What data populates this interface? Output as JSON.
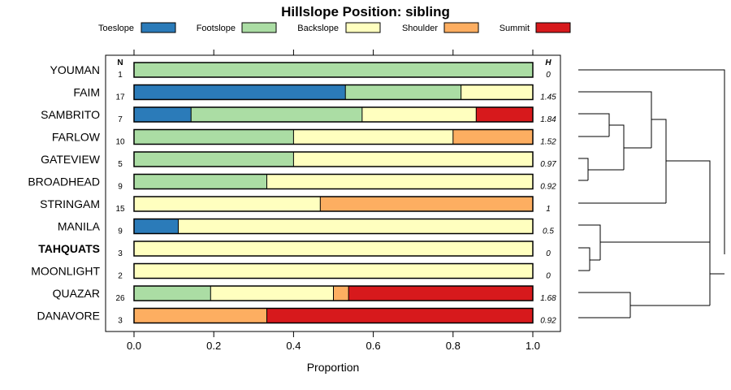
{
  "chart_data": {
    "type": "bar",
    "orientation": "horizontal-stacked",
    "title": "Hillslope Position: sibling",
    "xlabel": "Proportion",
    "xlim": [
      0,
      1
    ],
    "xticks": [
      "0.0",
      "0.2",
      "0.4",
      "0.6",
      "0.8",
      "1.0"
    ],
    "xtick_values": [
      0,
      0.2,
      0.4,
      0.6,
      0.8,
      1.0
    ],
    "n_header": "N",
    "h_header": "H",
    "legend": [
      {
        "name": "Toeslope",
        "color": "#2b7bb9"
      },
      {
        "name": "Footslope",
        "color": "#abdda4"
      },
      {
        "name": "Backslope",
        "color": "#ffffbf"
      },
      {
        "name": "Shoulder",
        "color": "#fdae61"
      },
      {
        "name": "Summit",
        "color": "#d7191c"
      }
    ],
    "rows": [
      {
        "label": "YOUMAN",
        "bold": false,
        "n": "1",
        "h": "0",
        "values": [
          0,
          1.0,
          0,
          0,
          0
        ]
      },
      {
        "label": "FAIM",
        "bold": false,
        "n": "17",
        "h": "1.45",
        "values": [
          0.53,
          0.29,
          0.18,
          0,
          0
        ]
      },
      {
        "label": "SAMBRITO",
        "bold": false,
        "n": "7",
        "h": "1.84",
        "values": [
          0.143,
          0.429,
          0.286,
          0,
          0.143
        ]
      },
      {
        "label": "FARLOW",
        "bold": false,
        "n": "10",
        "h": "1.52",
        "values": [
          0,
          0.4,
          0.4,
          0.2,
          0
        ]
      },
      {
        "label": "GATEVIEW",
        "bold": false,
        "n": "5",
        "h": "0.97",
        "values": [
          0,
          0.4,
          0.6,
          0,
          0
        ]
      },
      {
        "label": "BROADHEAD",
        "bold": false,
        "n": "9",
        "h": "0.92",
        "values": [
          0,
          0.333,
          0.667,
          0,
          0
        ]
      },
      {
        "label": "STRINGAM",
        "bold": false,
        "n": "15",
        "h": "1",
        "values": [
          0,
          0,
          0.467,
          0.533,
          0
        ]
      },
      {
        "label": "MANILA",
        "bold": false,
        "n": "9",
        "h": "0.5",
        "values": [
          0.111,
          0,
          0.889,
          0,
          0
        ]
      },
      {
        "label": "TAHQUATS",
        "bold": true,
        "n": "3",
        "h": "0",
        "values": [
          0,
          0,
          1.0,
          0,
          0
        ]
      },
      {
        "label": "MOONLIGHT",
        "bold": false,
        "n": "2",
        "h": "0",
        "values": [
          0,
          0,
          1.0,
          0,
          0
        ]
      },
      {
        "label": "QUAZAR",
        "bold": false,
        "n": "26",
        "h": "1.68",
        "values": [
          0,
          0.192,
          0.308,
          0.038,
          0.462
        ]
      },
      {
        "label": "DANAVORE",
        "bold": false,
        "n": "3",
        "h": "0.92",
        "values": [
          0,
          0,
          0,
          0.333,
          0.667
        ]
      }
    ]
  }
}
